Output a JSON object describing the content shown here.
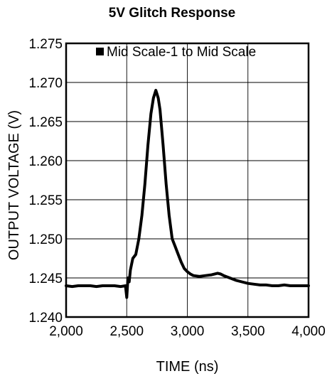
{
  "chart_data": {
    "type": "line",
    "title": "5V Glitch Response",
    "xlabel": "TIME (ns)",
    "ylabel": "OUTPUT VOLTAGE (V)",
    "xlim": [
      2000,
      4000
    ],
    "ylim": [
      1.24,
      1.275
    ],
    "x_ticks": [
      2000,
      2500,
      3000,
      3500,
      4000
    ],
    "x_tick_labels": [
      "2,000",
      "2,500",
      "3,000",
      "3,500",
      "4,000"
    ],
    "y_ticks": [
      1.24,
      1.245,
      1.25,
      1.255,
      1.26,
      1.265,
      1.27,
      1.275
    ],
    "y_tick_labels": [
      "1.240",
      "1.245",
      "1.250",
      "1.255",
      "1.260",
      "1.265",
      "1.270",
      "1.275"
    ],
    "grid": true,
    "legend_position": "top",
    "series": [
      {
        "name": "Mid Scale-1 to Mid Scale",
        "color": "#000000",
        "x": [
          2000,
          2050,
          2100,
          2150,
          2200,
          2250,
          2300,
          2350,
          2400,
          2450,
          2490,
          2500,
          2510,
          2520,
          2530,
          2550,
          2575,
          2600,
          2625,
          2650,
          2675,
          2700,
          2720,
          2740,
          2750,
          2760,
          2775,
          2800,
          2825,
          2850,
          2875,
          2900,
          2925,
          2950,
          2975,
          3000,
          3025,
          3050,
          3100,
          3150,
          3200,
          3250,
          3275,
          3300,
          3350,
          3400,
          3450,
          3500,
          3550,
          3600,
          3650,
          3700,
          3750,
          3800,
          3850,
          3900,
          3950,
          4000
        ],
        "values": [
          1.244,
          1.2439,
          1.244,
          1.244,
          1.244,
          1.2439,
          1.244,
          1.244,
          1.244,
          1.2439,
          1.244,
          1.2425,
          1.245,
          1.2445,
          1.246,
          1.2475,
          1.248,
          1.25,
          1.253,
          1.257,
          1.262,
          1.266,
          1.268,
          1.269,
          1.2685,
          1.268,
          1.2665,
          1.262,
          1.257,
          1.253,
          1.25,
          1.249,
          1.248,
          1.247,
          1.2462,
          1.2458,
          1.2455,
          1.2453,
          1.2452,
          1.2453,
          1.2454,
          1.2456,
          1.2455,
          1.2453,
          1.245,
          1.2447,
          1.2445,
          1.2443,
          1.2442,
          1.2441,
          1.2441,
          1.244,
          1.244,
          1.2441,
          1.244,
          1.244,
          1.244,
          1.244
        ]
      }
    ]
  }
}
